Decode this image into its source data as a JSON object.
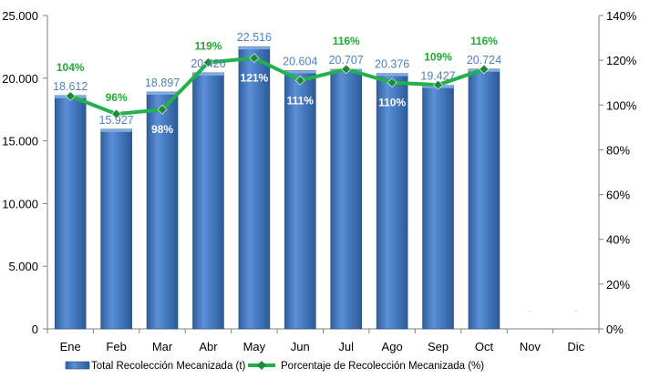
{
  "chart_data": {
    "type": "bar",
    "categories": [
      "Ene",
      "Feb",
      "Mar",
      "Abr",
      "May",
      "Jun",
      "Jul",
      "Ago",
      "Sep",
      "Oct",
      "Nov",
      "Dic"
    ],
    "series": [
      {
        "name": "Total Recolección Mecanizada (t)",
        "type": "bar",
        "axis": "left",
        "values": [
          18612,
          15927,
          18897,
          20426,
          22516,
          20604,
          20707,
          20376,
          19427,
          20724,
          null,
          null
        ],
        "labels": [
          "18.612",
          "15.927",
          "18.897",
          "20.426",
          "22.516",
          "20.604",
          "20.707",
          "20.376",
          "19.427",
          "20.724",
          "",
          ""
        ],
        "color": "#4f81bd"
      },
      {
        "name": "Porcentaje de Recolección Mecanizada (%)",
        "type": "line",
        "axis": "right",
        "values": [
          104,
          96,
          98,
          119,
          121,
          111,
          116,
          110,
          109,
          116,
          null,
          null
        ],
        "labels": [
          "104%",
          "96%",
          "98%",
          "119%",
          "121%",
          "111%",
          "116%",
          "110%",
          "109%",
          "116%",
          "",
          ""
        ],
        "color": "#22b14c"
      }
    ],
    "y_left": {
      "ylim": [
        0,
        25000
      ],
      "ticks": [
        0,
        5000,
        10000,
        15000,
        20000,
        25000
      ],
      "tick_labels": [
        "0",
        "5.000",
        "10.000",
        "15.000",
        "20.000",
        "25.000"
      ]
    },
    "y_right": {
      "ylim": [
        0,
        140
      ],
      "ticks": [
        0,
        20,
        40,
        60,
        80,
        100,
        120,
        140
      ],
      "tick_labels": [
        "0%",
        "20%",
        "40%",
        "60%",
        "80%",
        "100%",
        "120%",
        "140%"
      ]
    },
    "grid": false,
    "legend_position": "bottom"
  }
}
